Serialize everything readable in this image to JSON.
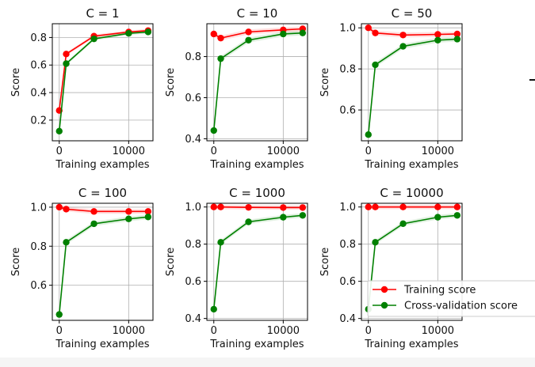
{
  "chart_data": [
    {
      "type": "line",
      "title": "C = 1",
      "xlabel": "Training examples",
      "ylabel": "Score",
      "xlim": [
        -1000,
        13500
      ],
      "ylim": [
        0.05,
        0.9
      ],
      "xticks": [
        0,
        10000
      ],
      "yticks": [
        0.2,
        0.4,
        0.6,
        0.8
      ],
      "grid": true,
      "x": [
        0,
        1000,
        5000,
        10000,
        12800
      ],
      "series": [
        {
          "name": "Training score",
          "color": "#ff0000",
          "values": [
            0.27,
            0.68,
            0.81,
            0.84,
            0.85
          ]
        },
        {
          "name": "Cross-validation score",
          "color": "#008000",
          "values": [
            0.12,
            0.61,
            0.79,
            0.83,
            0.84
          ]
        }
      ]
    },
    {
      "type": "line",
      "title": "C = 10",
      "xlabel": "Training examples",
      "ylabel": "Score",
      "xlim": [
        -1000,
        13500
      ],
      "ylim": [
        0.39,
        0.96
      ],
      "xticks": [
        0,
        10000
      ],
      "yticks": [
        0.4,
        0.6,
        0.8
      ],
      "grid": true,
      "x": [
        0,
        1000,
        5000,
        10000,
        12800
      ],
      "series": [
        {
          "name": "Training score",
          "color": "#ff0000",
          "values": [
            0.91,
            0.89,
            0.92,
            0.93,
            0.935
          ]
        },
        {
          "name": "Cross-validation score",
          "color": "#008000",
          "values": [
            0.44,
            0.79,
            0.88,
            0.91,
            0.915
          ]
        }
      ]
    },
    {
      "type": "line",
      "title": "C = 50",
      "xlabel": "Training examples",
      "ylabel": "Score",
      "xlim": [
        -1000,
        13500
      ],
      "ylim": [
        0.45,
        1.02
      ],
      "xticks": [
        0,
        10000
      ],
      "yticks": [
        0.6,
        0.8,
        1.0
      ],
      "ytick_labels": [
        "0.6",
        "0.8",
        "1.0"
      ],
      "grid": true,
      "x": [
        0,
        1000,
        5000,
        10000,
        12800
      ],
      "series": [
        {
          "name": "Training score",
          "color": "#ff0000",
          "values": [
            1.0,
            0.975,
            0.965,
            0.968,
            0.97
          ]
        },
        {
          "name": "Cross-validation score",
          "color": "#008000",
          "values": [
            0.48,
            0.82,
            0.91,
            0.94,
            0.945
          ]
        }
      ]
    },
    {
      "type": "line",
      "title": "C = 100",
      "xlabel": "Training examples",
      "ylabel": "Score",
      "xlim": [
        -1000,
        13500
      ],
      "ylim": [
        0.42,
        1.02
      ],
      "xticks": [
        0,
        10000
      ],
      "yticks": [
        0.6,
        0.8,
        1.0
      ],
      "ytick_labels": [
        "0.6",
        "0.8",
        "1.0"
      ],
      "grid": true,
      "x": [
        0,
        1000,
        5000,
        10000,
        12800
      ],
      "series": [
        {
          "name": "Training score",
          "color": "#ff0000",
          "values": [
            1.0,
            0.99,
            0.978,
            0.978,
            0.978
          ]
        },
        {
          "name": "Cross-validation score",
          "color": "#008000",
          "values": [
            0.45,
            0.82,
            0.915,
            0.94,
            0.95
          ]
        }
      ]
    },
    {
      "type": "line",
      "title": "C = 1000",
      "xlabel": "Training examples",
      "ylabel": "Score",
      "xlim": [
        -1000,
        13500
      ],
      "ylim": [
        0.39,
        1.02
      ],
      "xticks": [
        0,
        10000
      ],
      "yticks": [
        0.4,
        0.6,
        0.8,
        1.0
      ],
      "ytick_labels": [
        "0.4",
        "0.6",
        "0.8",
        "1.0"
      ],
      "grid": true,
      "x": [
        0,
        1000,
        5000,
        10000,
        12800
      ],
      "series": [
        {
          "name": "Training score",
          "color": "#ff0000",
          "values": [
            1.0,
            1.0,
            0.998,
            0.997,
            0.997
          ]
        },
        {
          "name": "Cross-validation score",
          "color": "#008000",
          "values": [
            0.45,
            0.81,
            0.92,
            0.945,
            0.955
          ]
        }
      ]
    },
    {
      "type": "line",
      "title": "C = 10000",
      "xlabel": "Training examples",
      "ylabel": "Score",
      "xlim": [
        -1000,
        13500
      ],
      "ylim": [
        0.39,
        1.02
      ],
      "xticks": [
        0,
        10000
      ],
      "yticks": [
        0.4,
        0.6,
        0.8,
        1.0
      ],
      "ytick_labels": [
        "0.4",
        "0.6",
        "0.8",
        "1.0"
      ],
      "grid": true,
      "x": [
        0,
        1000,
        5000,
        10000,
        12800
      ],
      "series": [
        {
          "name": "Training score",
          "color": "#ff0000",
          "values": [
            1.0,
            1.0,
            1.0,
            1.0,
            1.0
          ]
        },
        {
          "name": "Cross-validation score",
          "color": "#008000",
          "values": [
            0.45,
            0.81,
            0.91,
            0.945,
            0.955
          ]
        }
      ]
    }
  ],
  "legend": {
    "placement": "lower-right of last panel",
    "entries": [
      {
        "label": "Training score",
        "color": "#ff0000"
      },
      {
        "label": "Cross-validation score",
        "color": "#008000"
      }
    ]
  }
}
